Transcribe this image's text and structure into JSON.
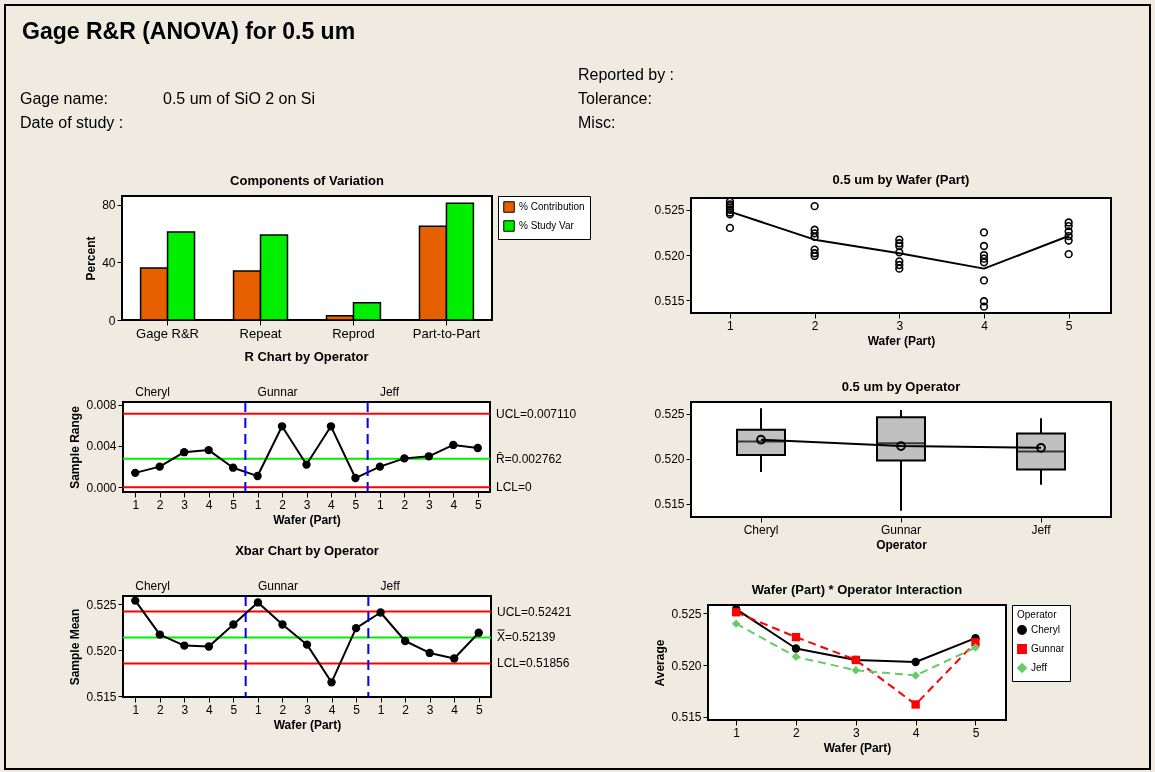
{
  "chart_data": [
    {
      "type": "other",
      "title": "Gage R&R (ANOVA) for 0.5 um",
      "annotations": [
        "Reported by :",
        "Gage name:",
        "0.5 um of SiO 2 on Si",
        "Tolerance:",
        "Date of study :",
        "Misc:"
      ]
    },
    {
      "type": "bar",
      "title": "Components of Variation",
      "ylabel": "Percent",
      "categories": [
        "Gage R&R",
        "Repeat",
        "Reprod",
        "Part-to-Part"
      ],
      "series": [
        {
          "name": "% Contribution",
          "color": "#e66000",
          "values": [
            36,
            34,
            3,
            65
          ]
        },
        {
          "name": "% Study Var",
          "color": "#00ee00",
          "values": [
            61,
            59,
            12,
            81
          ]
        }
      ],
      "ylim": [
        0,
        86
      ],
      "yticks": [
        0,
        40,
        80
      ],
      "legend": "right"
    },
    {
      "type": "line",
      "title": "R Chart by Operator",
      "xlabel": "Wafer (Part)",
      "ylabel": "Sample Range",
      "marker": "circle",
      "categories": [
        "1",
        "2",
        "3",
        "4",
        "5",
        "1",
        "2",
        "3",
        "4",
        "5",
        "1",
        "2",
        "3",
        "4",
        "5"
      ],
      "ylim": [
        -0.00045,
        0.00825
      ],
      "yticks": [
        {
          "value": 0,
          "label": "0.000"
        },
        {
          "value": 0.004,
          "label": "0.004"
        },
        {
          "value": 0.008,
          "label": "0.008"
        }
      ],
      "series": [
        {
          "color": "#000000",
          "values": [
            0.0014,
            0.002,
            0.0034,
            0.0036,
            0.0019,
            0.0011,
            0.0059,
            0.0022,
            0.0059,
            0.0009,
            0.002,
            0.0028,
            0.003,
            0.0041,
            0.0038
          ]
        }
      ],
      "ref_lines": [
        {
          "axis": "y",
          "value": 0.00711,
          "label": "UCL=0.007110",
          "color": "#ff0000"
        },
        {
          "axis": "y",
          "value": 0.002762,
          "label": "R̄=0.002762",
          "color": "#00ee00"
        },
        {
          "axis": "y",
          "value": 0,
          "label": "LCL=0",
          "color": "#ff0000"
        }
      ],
      "annotations": [
        "Cheryl",
        "Gunnar",
        "Jeff"
      ]
    },
    {
      "type": "line",
      "title": "Xbar Chart by Operator",
      "xlabel": "Wafer (Part)",
      "ylabel": "Sample Mean",
      "marker": "circle",
      "categories": [
        "1",
        "2",
        "3",
        "4",
        "5",
        "1",
        "2",
        "3",
        "4",
        "5",
        "1",
        "2",
        "3",
        "4",
        "5"
      ],
      "ylim": [
        0.5149,
        0.5259
      ],
      "yticks": [
        0.515,
        {
          "value": 0.52,
          "label": "0.520"
        },
        0.525
      ],
      "series": [
        {
          "color": "#000000",
          "values": [
            0.5254,
            0.5217,
            0.5205,
            0.5204,
            0.5228,
            0.5252,
            0.5228,
            0.5206,
            0.5165,
            0.5224,
            0.5241,
            0.521,
            0.5197,
            0.5191,
            0.5219
          ]
        }
      ],
      "ref_lines": [
        {
          "axis": "y",
          "value": 0.52421,
          "label": "UCL=0.52421",
          "color": "#ff0000"
        },
        {
          "axis": "y",
          "value": 0.52139,
          "label": "X̿=0.52139",
          "color": "#00ee00"
        },
        {
          "axis": "y",
          "value": 0.51856,
          "label": "LCL=0.51856",
          "color": "#ff0000"
        }
      ],
      "annotations": [
        "Cheryl",
        "Gunnar",
        "Jeff"
      ]
    },
    {
      "type": "scatter",
      "title": "0.5 um by Wafer (Part)",
      "xlabel": "Wafer (Part)",
      "xlim": [
        0.54,
        5.5
      ],
      "xticks": [
        1,
        2,
        3,
        4,
        5
      ],
      "ylim": [
        0.5136,
        0.5263
      ],
      "yticks": [
        0.515,
        {
          "value": 0.52,
          "label": "0.520"
        },
        0.525
      ],
      "series": [
        {
          "type": "scatter",
          "color": "#000000",
          "marker": "circle",
          "x": [
            1,
            1,
            1,
            1,
            1,
            1,
            1,
            2,
            2,
            2,
            2,
            2,
            2,
            2,
            3,
            3,
            3,
            3,
            3,
            3,
            3,
            4,
            4,
            4,
            4,
            4,
            4,
            4,
            4,
            5,
            5,
            5,
            5,
            5,
            5
          ],
          "values": [
            0.5259,
            0.5256,
            0.5254,
            0.525,
            0.5247,
            0.5245,
            0.523,
            0.5254,
            0.5228,
            0.5224,
            0.522,
            0.5206,
            0.5202,
            0.5199,
            0.5217,
            0.5213,
            0.521,
            0.5203,
            0.5193,
            0.5189,
            0.5185,
            0.5225,
            0.521,
            0.52,
            0.5196,
            0.5192,
            0.5172,
            0.5149,
            0.5143,
            0.5236,
            0.5232,
            0.5226,
            0.5221,
            0.5216,
            0.5201
          ]
        },
        {
          "type": "line",
          "color": "#000000",
          "marker": "none",
          "x": [
            1,
            2,
            3,
            4,
            5
          ],
          "values": [
            0.5248,
            0.5217,
            0.5202,
            0.5185,
            0.5221
          ]
        }
      ]
    },
    {
      "type": "box",
      "title": "0.5 um by Operator",
      "xlabel": "Operator",
      "categories": [
        "Cheryl",
        "Gunnar",
        "Jeff"
      ],
      "ylim": [
        0.5135,
        0.5263
      ],
      "yticks": [
        0.515,
        {
          "value": 0.52,
          "label": "0.520"
        },
        0.525
      ],
      "series": [
        {
          "type": "box",
          "color": "#c0c0c0",
          "boxes": [
            {
              "low": 0.5185,
              "q1": 0.5204,
              "median": 0.5219,
              "q3": 0.5232,
              "high": 0.5256,
              "mean": 0.5221
            },
            {
              "low": 0.5142,
              "q1": 0.5198,
              "median": 0.5217,
              "q3": 0.5246,
              "high": 0.5254,
              "mean": 0.5214
            },
            {
              "low": 0.5171,
              "q1": 0.5188,
              "median": 0.5208,
              "q3": 0.5228,
              "high": 0.5245,
              "mean": 0.5212
            }
          ]
        },
        {
          "type": "line",
          "color": "#000000",
          "values": [
            0.5221,
            0.5214,
            0.5212
          ]
        }
      ]
    },
    {
      "type": "line",
      "title": "Wafer (Part) * Operator Interaction",
      "xlabel": "Wafer (Part)",
      "ylabel": "Average",
      "legend_title": "Operator",
      "legend": "right",
      "x": [
        1,
        2,
        3,
        4,
        5
      ],
      "xlim": [
        0.53,
        5.51
      ],
      "xticks": [
        1,
        2,
        3,
        4,
        5
      ],
      "ylim": [
        0.5147,
        0.5258
      ],
      "yticks": [
        0.515,
        {
          "value": 0.52,
          "label": "0.520"
        },
        0.525
      ],
      "series": [
        {
          "name": "Cheryl",
          "color": "#000000",
          "marker": "circle",
          "line_style": "solid",
          "values": [
            0.5254,
            0.5216,
            0.5205,
            0.5203,
            0.5226
          ]
        },
        {
          "name": "Gunnar",
          "color": "#ff0000",
          "marker": "square",
          "line_style": "dashed",
          "values": [
            0.5251,
            0.5227,
            0.5205,
            0.5162,
            0.5222
          ]
        },
        {
          "name": "Jeff",
          "color": "#66cc66",
          "marker": "diamond",
          "line_style": "dashed",
          "values": [
            0.524,
            0.5208,
            0.5195,
            0.519,
            0.5217
          ]
        }
      ]
    }
  ]
}
